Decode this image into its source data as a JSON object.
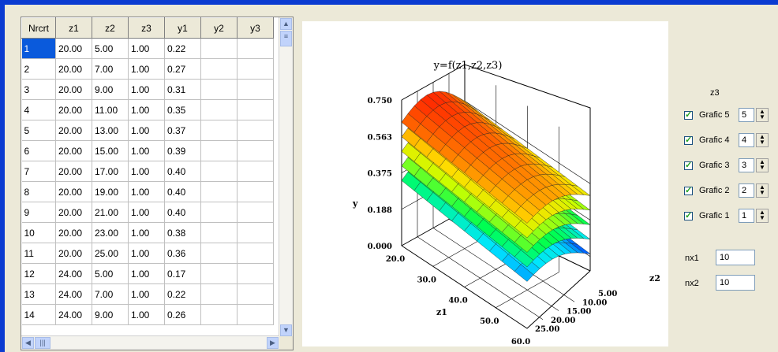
{
  "table": {
    "columns": [
      "Nrcrt",
      "z1",
      "z2",
      "z3",
      "y1",
      "y2",
      "y3"
    ],
    "rows": [
      [
        "1",
        "20.00",
        "5.00",
        "1.00",
        "0.22",
        "",
        ""
      ],
      [
        "2",
        "20.00",
        "7.00",
        "1.00",
        "0.27",
        "",
        ""
      ],
      [
        "3",
        "20.00",
        "9.00",
        "1.00",
        "0.31",
        "",
        ""
      ],
      [
        "4",
        "20.00",
        "11.00",
        "1.00",
        "0.35",
        "",
        ""
      ],
      [
        "5",
        "20.00",
        "13.00",
        "1.00",
        "0.37",
        "",
        ""
      ],
      [
        "6",
        "20.00",
        "15.00",
        "1.00",
        "0.39",
        "",
        ""
      ],
      [
        "7",
        "20.00",
        "17.00",
        "1.00",
        "0.40",
        "",
        ""
      ],
      [
        "8",
        "20.00",
        "19.00",
        "1.00",
        "0.40",
        "",
        ""
      ],
      [
        "9",
        "20.00",
        "21.00",
        "1.00",
        "0.40",
        "",
        ""
      ],
      [
        "10",
        "20.00",
        "23.00",
        "1.00",
        "0.38",
        "",
        ""
      ],
      [
        "11",
        "20.00",
        "25.00",
        "1.00",
        "0.36",
        "",
        ""
      ],
      [
        "12",
        "24.00",
        "5.00",
        "1.00",
        "0.17",
        "",
        ""
      ],
      [
        "13",
        "24.00",
        "7.00",
        "1.00",
        "0.22",
        "",
        ""
      ],
      [
        "14",
        "24.00",
        "9.00",
        "1.00",
        "0.26",
        "",
        ""
      ]
    ],
    "selected_row": 0
  },
  "chart": {
    "title": "y=f(z1,z2,z3)",
    "y_label": "y",
    "x_label": "z1",
    "z_label": "z2",
    "y_ticks": [
      "0.000",
      "0.188",
      "0.375",
      "0.563",
      "0.750"
    ],
    "x_ticks": [
      "20.0",
      "30.0",
      "40.0",
      "50.0",
      "60.0"
    ],
    "z_ticks": [
      "5.00",
      "10.00",
      "15.00",
      "20.00",
      "25.00"
    ]
  },
  "controls": {
    "z3_label": "z3",
    "grafics": [
      {
        "label": "Grafic 5",
        "value": "5",
        "checked": true
      },
      {
        "label": "Grafic 4",
        "value": "4",
        "checked": true
      },
      {
        "label": "Grafic 3",
        "value": "3",
        "checked": true
      },
      {
        "label": "Grafic 2",
        "value": "2",
        "checked": true
      },
      {
        "label": "Grafic 1",
        "value": "1",
        "checked": true
      }
    ],
    "nx1_label": "nx1",
    "nx1_value": "10",
    "nx2_label": "nx2",
    "nx2_value": "10"
  },
  "colors": {
    "selection": "#0a5adc",
    "frame": "#0b3bd1"
  }
}
